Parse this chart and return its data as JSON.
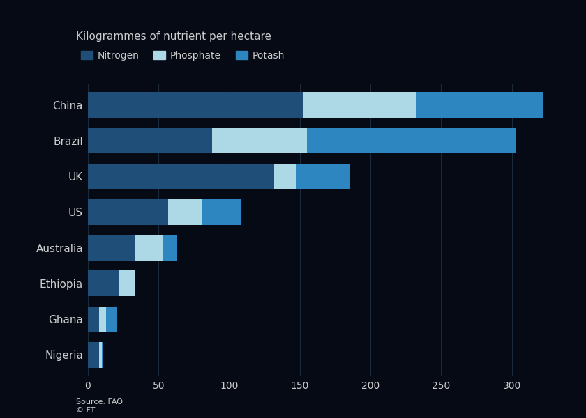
{
  "title": "Kilogrammes of nutrient per hectare",
  "source": "Source: FAO\n© FT",
  "categories": [
    "China",
    "Brazil",
    "UK",
    "US",
    "Australia",
    "Ethiopia",
    "Ghana",
    "Nigeria"
  ],
  "nitrogen": [
    152,
    88,
    132,
    57,
    33,
    22,
    8,
    8
  ],
  "phosphate": [
    80,
    67,
    15,
    24,
    20,
    11,
    5,
    2
  ],
  "potash": [
    90,
    148,
    38,
    27,
    10,
    0,
    7,
    1
  ],
  "color_nitrogen": "#1f4e79",
  "color_phosphate": "#add8e6",
  "color_potash": "#2e86c1",
  "bg_color": "#050a14",
  "text_color": "#cccccc",
  "grid_color": "#1a2a3a",
  "xlim": [
    0,
    340
  ],
  "xticks": [
    0,
    50,
    100,
    150,
    200,
    250,
    300
  ],
  "bar_height": 0.72,
  "legend_labels": [
    "Nitrogen",
    "Phosphate",
    "Potash"
  ],
  "fig_width": 8.4,
  "fig_height": 6.0
}
